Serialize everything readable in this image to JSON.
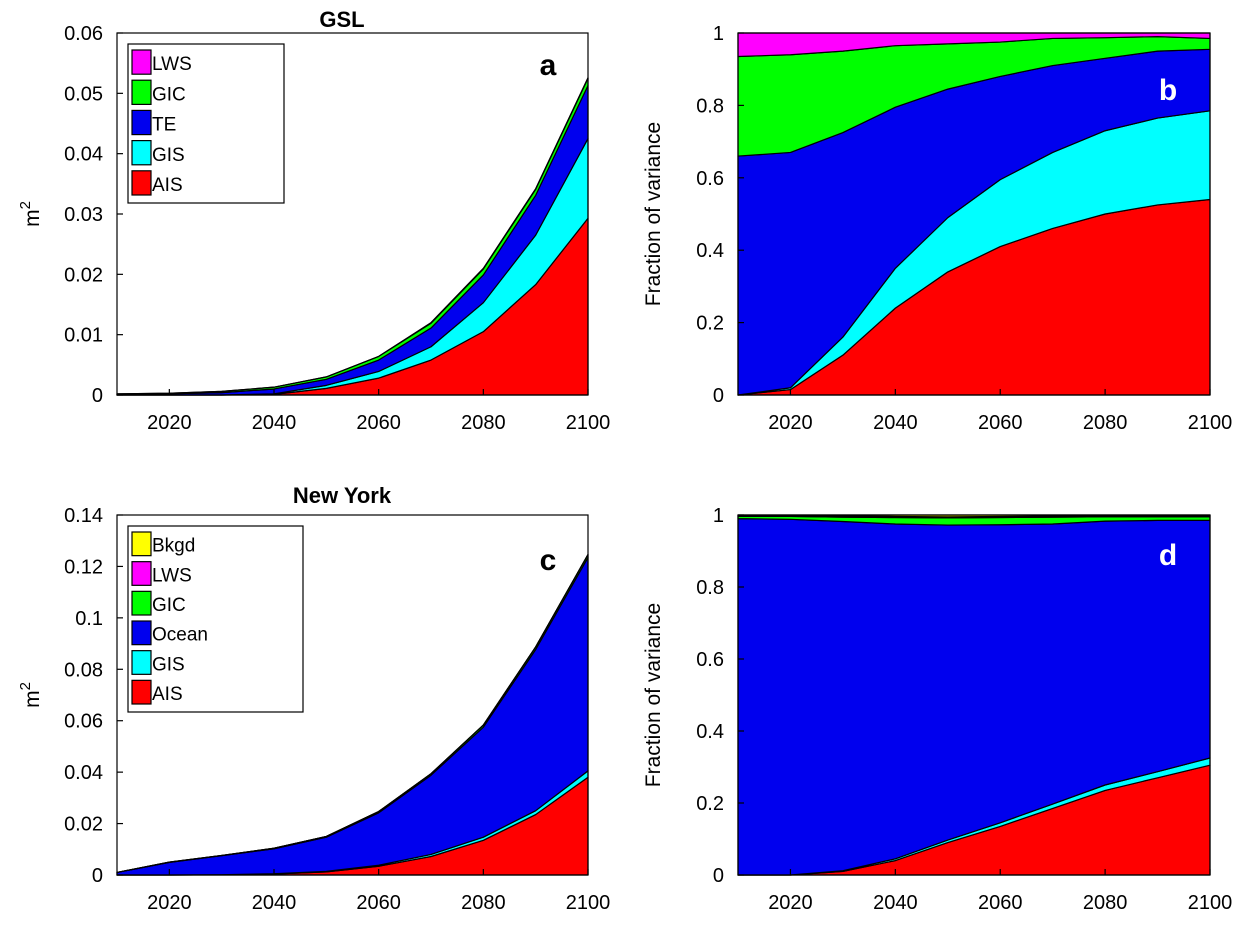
{
  "chart_data": [
    {
      "type": "area",
      "title": "GSL",
      "panel_label": "a",
      "xlabel": "",
      "ylabel": "m",
      "ylabel_superscript": "2",
      "xlim": [
        2010,
        2100
      ],
      "ylim": [
        0,
        0.06
      ],
      "grid": false,
      "legend_position": "top-left",
      "x": [
        2010,
        2020,
        2030,
        2040,
        2050,
        2060,
        2070,
        2080,
        2090,
        2100
      ],
      "x_ticks": [
        "2020",
        "2040",
        "2060",
        "2080",
        "2100"
      ],
      "y_ticks": [
        "0",
        "0.01",
        "0.02",
        "0.03",
        "0.04",
        "0.05",
        "0.06"
      ],
      "series": [
        {
          "name": "AIS",
          "color": "#ff0000",
          "values": [
            0.0,
            0.0,
            0.0,
            0.0001,
            0.0011,
            0.0028,
            0.0058,
            0.0105,
            0.0183,
            0.0293
          ]
        },
        {
          "name": "GIS",
          "color": "#00ffff",
          "values": [
            0.0,
            0.0,
            0.0,
            0.0001,
            0.0005,
            0.0011,
            0.0022,
            0.0048,
            0.0082,
            0.0132
          ]
        },
        {
          "name": "TE",
          "color": "#0000ee",
          "values": [
            0.0001,
            0.0002,
            0.0004,
            0.0008,
            0.001,
            0.0019,
            0.0031,
            0.0046,
            0.0066,
            0.0088
          ]
        },
        {
          "name": "GIC",
          "color": "#00ff00",
          "values": [
            0.0001,
            0.0001,
            0.0002,
            0.0003,
            0.0004,
            0.0006,
            0.0008,
            0.001,
            0.001,
            0.0012
          ]
        },
        {
          "name": "LWS",
          "color": "#ff00ff",
          "values": [
            0.0,
            0.0,
            0.0,
            0.0,
            0.0,
            0.0,
            0.0001,
            0.0001,
            0.0001,
            0.0001
          ]
        }
      ]
    },
    {
      "type": "area",
      "title": "",
      "panel_label": "b",
      "xlabel": "",
      "ylabel": "Fraction of variance",
      "xlim": [
        2010,
        2100
      ],
      "ylim": [
        0,
        1
      ],
      "grid": false,
      "x": [
        2010,
        2020,
        2030,
        2040,
        2050,
        2060,
        2070,
        2080,
        2090,
        2100
      ],
      "x_ticks": [
        "2020",
        "2040",
        "2060",
        "2080",
        "2100"
      ],
      "y_ticks": [
        "0",
        "0.2",
        "0.4",
        "0.6",
        "0.8",
        "1"
      ],
      "series": [
        {
          "name": "AIS",
          "color": "#ff0000",
          "values": [
            0.0,
            0.015,
            0.11,
            0.24,
            0.34,
            0.41,
            0.46,
            0.5,
            0.525,
            0.54
          ]
        },
        {
          "name": "GIS",
          "color": "#00ffff",
          "values": [
            0.0,
            0.005,
            0.05,
            0.11,
            0.15,
            0.185,
            0.21,
            0.23,
            0.24,
            0.245
          ]
        },
        {
          "name": "TE",
          "color": "#0000ee",
          "values": [
            0.66,
            0.65,
            0.565,
            0.445,
            0.355,
            0.285,
            0.24,
            0.2,
            0.185,
            0.17
          ]
        },
        {
          "name": "GIC",
          "color": "#00ff00",
          "values": [
            0.275,
            0.27,
            0.225,
            0.17,
            0.125,
            0.095,
            0.075,
            0.057,
            0.04,
            0.03
          ]
        },
        {
          "name": "LWS",
          "color": "#ff00ff",
          "values": [
            0.065,
            0.06,
            0.05,
            0.035,
            0.03,
            0.025,
            0.015,
            0.013,
            0.01,
            0.015
          ]
        }
      ]
    },
    {
      "type": "area",
      "title": "New York",
      "panel_label": "c",
      "xlabel": "",
      "ylabel": "m",
      "ylabel_superscript": "2",
      "xlim": [
        2010,
        2100
      ],
      "ylim": [
        0,
        0.14
      ],
      "grid": false,
      "legend_position": "top-left",
      "x": [
        2010,
        2020,
        2030,
        2040,
        2050,
        2060,
        2070,
        2080,
        2090,
        2100
      ],
      "x_ticks": [
        "2020",
        "2040",
        "2060",
        "2080",
        "2100"
      ],
      "y_ticks": [
        "0",
        "0.02",
        "0.04",
        "0.06",
        "0.08",
        "0.1",
        "0.12",
        "0.14"
      ],
      "series": [
        {
          "name": "AIS",
          "color": "#ff0000",
          "values": [
            0.0,
            0.0,
            0.0001,
            0.0004,
            0.0012,
            0.0034,
            0.0072,
            0.0135,
            0.0235,
            0.038
          ]
        },
        {
          "name": "GIS",
          "color": "#00ffff",
          "values": [
            0.0,
            0.0,
            0.0,
            0.0001,
            0.0002,
            0.0004,
            0.0008,
            0.0012,
            0.0015,
            0.0025
          ]
        },
        {
          "name": "Ocean",
          "color": "#0000ee",
          "values": [
            0.001,
            0.0049,
            0.0074,
            0.0097,
            0.0133,
            0.0204,
            0.0308,
            0.0428,
            0.0627,
            0.083
          ]
        },
        {
          "name": "GIC",
          "color": "#00ff00",
          "values": [
            0.0,
            0.0001,
            0.0001,
            0.0002,
            0.0003,
            0.0005,
            0.0006,
            0.0008,
            0.001,
            0.0011
          ]
        },
        {
          "name": "LWS",
          "color": "#ff00ff",
          "values": [
            0.0,
            0.0,
            0.0,
            0.0,
            0.0,
            0.0,
            0.0,
            0.0,
            0.0,
            0.0
          ]
        },
        {
          "name": "Bkgd",
          "color": "#ffff00",
          "values": [
            0.0,
            0.0,
            0.0,
            0.0,
            0.0,
            0.0,
            0.0,
            0.0,
            0.0,
            0.0
          ]
        }
      ]
    },
    {
      "type": "area",
      "title": "",
      "panel_label": "d",
      "xlabel": "",
      "ylabel": "Fraction of variance",
      "xlim": [
        2010,
        2100
      ],
      "ylim": [
        0,
        1
      ],
      "grid": false,
      "x": [
        2010,
        2020,
        2030,
        2040,
        2050,
        2060,
        2070,
        2080,
        2090,
        2100
      ],
      "x_ticks": [
        "2020",
        "2040",
        "2060",
        "2080",
        "2100"
      ],
      "y_ticks": [
        "0",
        "0.2",
        "0.4",
        "0.6",
        "0.8",
        "1"
      ],
      "series": [
        {
          "name": "AIS",
          "color": "#ff0000",
          "values": [
            0.0,
            0.0,
            0.01,
            0.04,
            0.09,
            0.135,
            0.185,
            0.235,
            0.27,
            0.305
          ]
        },
        {
          "name": "GIS",
          "color": "#00ffff",
          "values": [
            0.0,
            0.0,
            0.002,
            0.005,
            0.007,
            0.01,
            0.012,
            0.015,
            0.017,
            0.02
          ]
        },
        {
          "name": "Ocean",
          "color": "#0000ee",
          "values": [
            0.99,
            0.988,
            0.97,
            0.93,
            0.875,
            0.828,
            0.778,
            0.733,
            0.698,
            0.66
          ]
        },
        {
          "name": "GIC",
          "color": "#00ff00",
          "values": [
            0.006,
            0.008,
            0.012,
            0.018,
            0.02,
            0.02,
            0.019,
            0.012,
            0.01,
            0.01
          ]
        },
        {
          "name": "LWS",
          "color": "#ff00ff",
          "values": [
            0.002,
            0.002,
            0.003,
            0.003,
            0.003,
            0.003,
            0.003,
            0.003,
            0.003,
            0.003
          ]
        },
        {
          "name": "Bkgd",
          "color": "#ffff00",
          "values": [
            0.002,
            0.002,
            0.003,
            0.004,
            0.005,
            0.004,
            0.003,
            0.002,
            0.002,
            0.002
          ]
        }
      ]
    }
  ]
}
